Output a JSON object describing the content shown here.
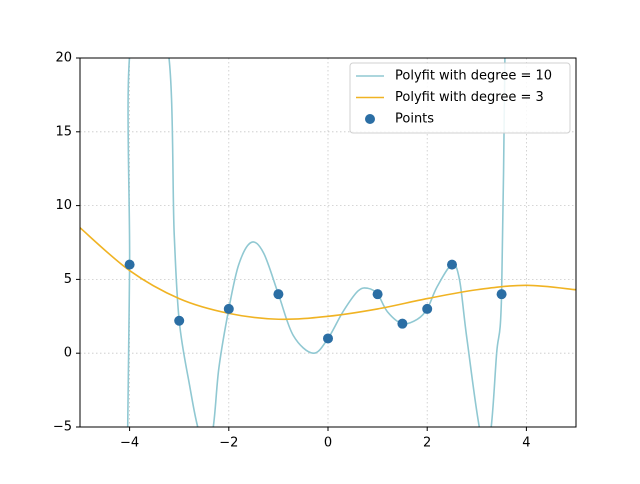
{
  "chart_data": {
    "type": "line",
    "xlim": [
      -5,
      5
    ],
    "ylim": [
      -5,
      20
    ],
    "xticks": [
      {
        "value": -4,
        "label": "−4"
      },
      {
        "value": -2,
        "label": "−2"
      },
      0,
      2,
      4
    ],
    "yticks": [
      {
        "value": -5,
        "label": "−5"
      },
      0,
      5,
      10,
      15,
      20
    ],
    "grid": true,
    "legend": "upper right",
    "series": [
      {
        "name": "Polyfit with degree = 10",
        "color": "#90c8d2",
        "x": [
          -4.04,
          -4,
          -3.97,
          -3.25,
          -3.1,
          -3,
          -2.8,
          -2.58,
          -2.34,
          -2.2,
          -2,
          -1.8,
          -1.55,
          -1.3,
          -1,
          -0.7,
          -0.3,
          0,
          0.3,
          0.6,
          0.8,
          1,
          1.2,
          1.5,
          1.8,
          2,
          2.2,
          2.5,
          2.65,
          2.8,
          3.08,
          3.27,
          3.4,
          3.5,
          3.57
        ],
        "values": [
          -5.5,
          6,
          21,
          21,
          8,
          2.2,
          -2,
          -5.5,
          -5.5,
          -1,
          3,
          6,
          7.5,
          6.8,
          4,
          1.2,
          0,
          1,
          2.8,
          4.2,
          4.4,
          4,
          2.8,
          2,
          2.3,
          3,
          4.5,
          6,
          5,
          1,
          -5.5,
          -5.5,
          0,
          4,
          21
        ]
      },
      {
        "name": "Polyfit with degree = 3",
        "color": "#f0b323",
        "x": [
          -5,
          -4,
          -3,
          -2,
          -1,
          0,
          1,
          2,
          3,
          4,
          5
        ],
        "values": [
          8.5,
          5.6,
          3.7,
          2.7,
          2.3,
          2.5,
          3.0,
          3.7,
          4.3,
          4.6,
          4.3
        ]
      },
      {
        "name": "Points",
        "type": "scatter",
        "color": "#2b6ea4",
        "x": [
          -4,
          -3,
          -2,
          -1,
          0,
          1,
          1.5,
          2,
          2.5,
          3.5
        ],
        "values": [
          6,
          2.2,
          3,
          4,
          1,
          4,
          2,
          3,
          6,
          4
        ]
      }
    ]
  }
}
